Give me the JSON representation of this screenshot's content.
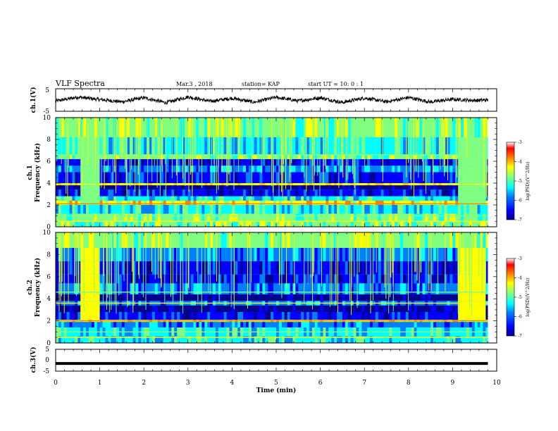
{
  "header": {
    "title": "VLF Spectra",
    "date": "Mar.3 , 2018",
    "station": "station= KAP",
    "start_time": "start UT = 10: 0 : 1"
  },
  "chart_data": [
    {
      "type": "line",
      "name": "ch1-waveform",
      "ylabel": "ch.1(V)",
      "ylim": [
        -5,
        5
      ],
      "yticks": [
        "5",
        "-5"
      ],
      "xlim": [
        0,
        10
      ],
      "x": [
        0,
        0.5,
        1,
        1.5,
        2,
        2.5,
        3,
        3.5,
        4,
        4.5,
        5,
        5.5,
        6,
        6.5,
        7,
        7.5,
        8,
        8.5,
        9,
        9.5,
        9.8
      ],
      "y": [
        -0.5,
        1.3,
        0.2,
        -0.8,
        1.0,
        -1.2,
        1.4,
        -0.6,
        0.8,
        -1.0,
        1.2,
        -0.4,
        1.0,
        -1.1,
        0.9,
        -0.8,
        1.1,
        -0.9,
        0.3,
        -0.2,
        0.0
      ]
    },
    {
      "type": "heatmap",
      "name": "ch1-spectrogram",
      "ylabel": "ch.1\nFrequency (kHz)",
      "ylabel_lines": [
        "ch.1",
        "Frequency (kHz)"
      ],
      "xlim": [
        0,
        10
      ],
      "ylim": [
        0,
        10
      ],
      "yticks": [
        "0",
        "2",
        "4",
        "6",
        "8",
        "10"
      ],
      "colorbar": {
        "label": "log(PSD)(V^2/Hz)",
        "range": [
          -7,
          -3
        ],
        "ticks": [
          "-3",
          "-4",
          "-5",
          "-6",
          "-7"
        ]
      }
    },
    {
      "type": "heatmap",
      "name": "ch2-spectrogram",
      "ylabel": "ch.2\nFrequency (kHz)",
      "ylabel_lines": [
        "ch.2",
        "Frequency (kHz)"
      ],
      "xlim": [
        0,
        10
      ],
      "ylim": [
        0,
        10
      ],
      "yticks": [
        "0",
        "2",
        "4",
        "6",
        "8",
        "10"
      ],
      "colorbar": {
        "label": "log(PSD)(V^2/Hz)",
        "range": [
          -7,
          -3
        ],
        "ticks": [
          "-3",
          "-4",
          "-5",
          "-6",
          "-7"
        ]
      }
    },
    {
      "type": "line",
      "name": "ch3-waveform",
      "ylabel": "ch.3(V)",
      "ylim": [
        -5,
        5
      ],
      "yticks": [
        "5",
        "0",
        "-5"
      ],
      "xlim": [
        0,
        10
      ],
      "x": [
        0,
        9.8
      ],
      "y": [
        -1.5,
        -1.5
      ]
    }
  ],
  "xaxis": {
    "label": "Time (min)",
    "ticks": [
      "0",
      "1",
      "2",
      "3",
      "4",
      "5",
      "6",
      "7",
      "8",
      "9",
      "10"
    ]
  },
  "colors": {
    "colormap": [
      "#00008f",
      "#0000ff",
      "#0080ff",
      "#00ffff",
      "#80ff80",
      "#ffff00",
      "#ff8000",
      "#ff0000",
      "#800000"
    ]
  }
}
